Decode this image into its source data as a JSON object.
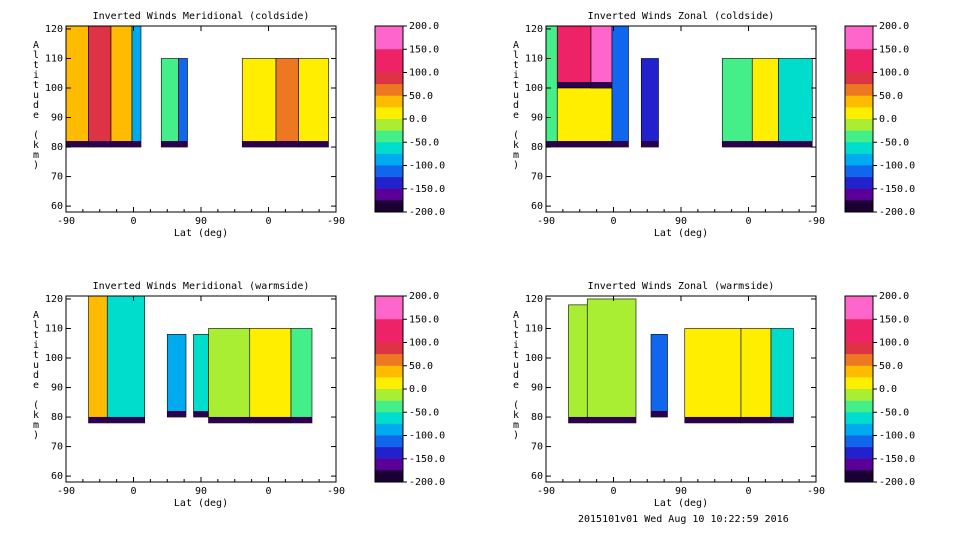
{
  "footer_text": "2015101v01 Wed Aug 10 10:22:59 2016",
  "shared_axes": {
    "xlabel": "Lat (deg)",
    "ylabel": "Altitude (km)",
    "x_tick_labels": [
      "-90",
      "0",
      "90",
      "0",
      "-90"
    ],
    "y_ticks": [
      60,
      70,
      80,
      90,
      100,
      110,
      120
    ],
    "ylim": [
      58,
      121
    ],
    "colorbar_range": [
      -200,
      200
    ],
    "colorbar_tick_labels": [
      "200.0",
      "150.0",
      "100.0",
      "50.0",
      "0.0",
      "-50.0",
      "-100.0",
      "-150.0",
      "-200.0"
    ],
    "colormap_colors": [
      "#1a0033",
      "#5a0099",
      "#2222cc",
      "#1166ee",
      "#00aaee",
      "#00ddcc",
      "#44ee88",
      "#aaee33",
      "#ffee00",
      "#ffbb00",
      "#ee7722",
      "#dd3344",
      "#ee2266",
      "#ff66cc",
      "#ff88dd"
    ],
    "colormap_stops": [
      -200,
      -175,
      -150,
      -125,
      -100,
      -75,
      -50,
      -25,
      0,
      25,
      50,
      75,
      100,
      150,
      200
    ]
  },
  "chart_data": [
    {
      "type": "heatmap",
      "title": "Inverted Winds Meridional (coldside)",
      "xlabel": "Lat (deg)",
      "ylabel": "Altitude (km)",
      "x_range": [
        0,
        360
      ],
      "data_regions": [
        {
          "x": [
            0,
            30
          ],
          "y": [
            80,
            121
          ],
          "v": 40
        },
        {
          "x": [
            30,
            60
          ],
          "y": [
            80,
            121
          ],
          "v": 90
        },
        {
          "x": [
            60,
            88
          ],
          "y": [
            80,
            121
          ],
          "v": 25
        },
        {
          "x": [
            88,
            100
          ],
          "y": [
            80,
            121
          ],
          "v": -100
        },
        {
          "x": [
            127,
            150
          ],
          "y": [
            80,
            110
          ],
          "v": -40
        },
        {
          "x": [
            150,
            162
          ],
          "y": [
            80,
            110
          ],
          "v": -110
        },
        {
          "x": [
            235,
            280
          ],
          "y": [
            80,
            110
          ],
          "v": 10
        },
        {
          "x": [
            280,
            310
          ],
          "y": [
            80,
            110
          ],
          "v": 60
        },
        {
          "x": [
            310,
            350
          ],
          "y": [
            80,
            110
          ],
          "v": 20
        }
      ]
    },
    {
      "type": "heatmap",
      "title": "Inverted Winds Zonal (coldside)",
      "xlabel": "Lat (deg)",
      "ylabel": "Altitude (km)",
      "x_range": [
        0,
        360
      ],
      "data_regions": [
        {
          "x": [
            0,
            15
          ],
          "y": [
            80,
            121
          ],
          "v": -30
        },
        {
          "x": [
            15,
            60
          ],
          "y": [
            100,
            121
          ],
          "v": 120
        },
        {
          "x": [
            15,
            88
          ],
          "y": [
            80,
            100
          ],
          "v": 0
        },
        {
          "x": [
            60,
            88
          ],
          "y": [
            100,
            121
          ],
          "v": 160
        },
        {
          "x": [
            88,
            110
          ],
          "y": [
            80,
            121
          ],
          "v": -120
        },
        {
          "x": [
            127,
            150
          ],
          "y": [
            80,
            110
          ],
          "v": -150
        },
        {
          "x": [
            235,
            275
          ],
          "y": [
            80,
            110
          ],
          "v": -40
        },
        {
          "x": [
            275,
            310
          ],
          "y": [
            80,
            110
          ],
          "v": 10
        },
        {
          "x": [
            310,
            355
          ],
          "y": [
            80,
            110
          ],
          "v": -70
        }
      ]
    },
    {
      "type": "heatmap",
      "title": "Inverted Winds Meridional (warmside)",
      "xlabel": "Lat (deg)",
      "ylabel": "Altitude (km)",
      "x_range": [
        0,
        360
      ],
      "data_regions": [
        {
          "x": [
            30,
            55
          ],
          "y": [
            78,
            121
          ],
          "v": 40
        },
        {
          "x": [
            55,
            105
          ],
          "y": [
            78,
            121
          ],
          "v": -70
        },
        {
          "x": [
            135,
            160
          ],
          "y": [
            80,
            108
          ],
          "v": -90
        },
        {
          "x": [
            170,
            190
          ],
          "y": [
            80,
            108
          ],
          "v": -60
        },
        {
          "x": [
            190,
            245
          ],
          "y": [
            78,
            110
          ],
          "v": -20
        },
        {
          "x": [
            245,
            300
          ],
          "y": [
            78,
            110
          ],
          "v": 10
        },
        {
          "x": [
            300,
            328
          ],
          "y": [
            78,
            110
          ],
          "v": -50
        }
      ]
    },
    {
      "type": "heatmap",
      "title": "Inverted Winds Zonal (warmside)",
      "xlabel": "Lat (deg)",
      "ylabel": "Altitude (km)",
      "x_range": [
        0,
        360
      ],
      "data_regions": [
        {
          "x": [
            30,
            55
          ],
          "y": [
            78,
            118
          ],
          "v": -20
        },
        {
          "x": [
            55,
            120
          ],
          "y": [
            78,
            120
          ],
          "v": -10
        },
        {
          "x": [
            140,
            162
          ],
          "y": [
            80,
            108
          ],
          "v": -110
        },
        {
          "x": [
            185,
            260
          ],
          "y": [
            78,
            110
          ],
          "v": 20
        },
        {
          "x": [
            260,
            300
          ],
          "y": [
            78,
            110
          ],
          "v": 0
        },
        {
          "x": [
            300,
            330
          ],
          "y": [
            78,
            110
          ],
          "v": -60
        }
      ]
    }
  ]
}
